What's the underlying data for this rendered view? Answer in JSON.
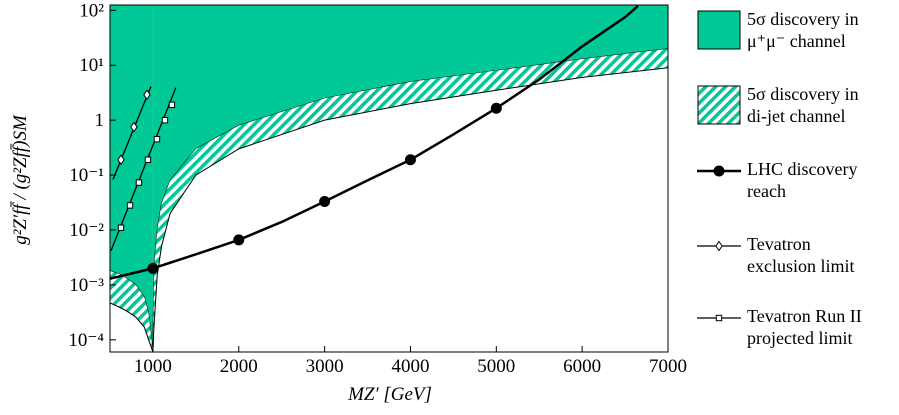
{
  "chart_data": {
    "type": "line",
    "xlabel": "MZ′ [GeV]",
    "ylabel": "g²Z′ff̄ / (g²Zff̄)SM",
    "log_y": true,
    "xlim": [
      500,
      7000
    ],
    "ylim": [
      6e-05,
      125
    ],
    "xticks": [
      1000,
      2000,
      3000,
      4000,
      5000,
      6000,
      7000
    ],
    "yticks": [
      {
        "value": 0.0001,
        "label": "10⁻⁴"
      },
      {
        "value": 0.001,
        "label": "10⁻³"
      },
      {
        "value": 0.01,
        "label": "10⁻²"
      },
      {
        "value": 0.1,
        "label": "10⁻¹"
      },
      1,
      {
        "value": 10,
        "label": "10¹"
      },
      {
        "value": 100,
        "label": "10²"
      }
    ],
    "regions": [
      {
        "name": "5σ discovery in\nμ⁺μ⁻ channel",
        "color": "#00c896",
        "style": "solid",
        "pieces": [
          {
            "x": [
              500,
              600,
              700,
              800,
              900,
              950,
              1000
            ],
            "lower": [
              0.0018,
              0.0016,
              0.0013,
              0.001,
              0.0006,
              0.0003,
              6e-05
            ]
          },
          {
            "x": [
              1000,
              1010,
              1050,
              1100,
              1200,
              1500,
              2000,
              3000,
              4000,
              5000,
              6000,
              7000
            ],
            "lower": [
              6e-05,
              0.002,
              0.01,
              0.03,
              0.08,
              0.3,
              0.8,
              2.5,
              5,
              8,
              13,
              20
            ]
          }
        ]
      },
      {
        "name": "5σ discovery in\ndi-jet channel",
        "color": "#00c896",
        "style": "hatch",
        "pieces": [
          {
            "x": [
              500,
              600,
              700,
              800,
              900,
              950,
              1000
            ],
            "lower": [
              0.00047,
              0.0004,
              0.00033,
              0.00026,
              0.00017,
              0.0001,
              6e-05
            ],
            "upper": [
              0.0018,
              0.0016,
              0.0013,
              0.001,
              0.0006,
              0.0003,
              6e-05
            ]
          },
          {
            "x": [
              1000,
              1010,
              1050,
              1100,
              1200,
              1500,
              2000,
              3000,
              4000,
              5000,
              6000,
              7000
            ],
            "lower": [
              6e-05,
              0.00015,
              0.0015,
              0.005,
              0.02,
              0.1,
              0.3,
              1,
              2,
              3.5,
              6,
              9
            ],
            "upper": [
              6e-05,
              0.002,
              0.01,
              0.03,
              0.08,
              0.3,
              0.8,
              2.5,
              5,
              8,
              13,
              20
            ]
          }
        ]
      }
    ],
    "series": [
      {
        "name": "LHC discovery\nreach",
        "color": "#000000",
        "marker": "circle",
        "x": [
          500,
          1000,
          1500,
          2000,
          2500,
          3000,
          3500,
          4000,
          4500,
          5000,
          5500,
          6000,
          6500,
          6650
        ],
        "values": [
          0.0013,
          0.002,
          0.0036,
          0.0066,
          0.014,
          0.033,
          0.08,
          0.19,
          0.55,
          1.65,
          5.5,
          22,
          75,
          120
        ],
        "points": {
          "x": [
            1000,
            2000,
            3000,
            4000,
            5000
          ],
          "values": [
            0.002,
            0.0066,
            0.033,
            0.19,
            1.65
          ]
        }
      },
      {
        "name": "Tevatron\nexclusion limit",
        "color": "#000000",
        "marker": "diamond",
        "x": [
          535,
          977
        ],
        "values": [
          0.083,
          4.1
        ],
        "points": {
          "x": [
            628,
            779,
            930
          ],
          "values": [
            0.19,
            0.75,
            2.9
          ]
        }
      },
      {
        "name": "Tevatron Run II\nprojected limit",
        "color": "#000000",
        "marker": "square",
        "x": [
          512,
          1267
        ],
        "values": [
          0.0042,
          3.9
        ],
        "points": {
          "x": [
            628,
            733,
            837,
            942,
            1047,
            1140,
            1221
          ],
          "values": [
            0.011,
            0.028,
            0.073,
            0.19,
            0.45,
            1,
            1.9
          ]
        }
      }
    ]
  }
}
